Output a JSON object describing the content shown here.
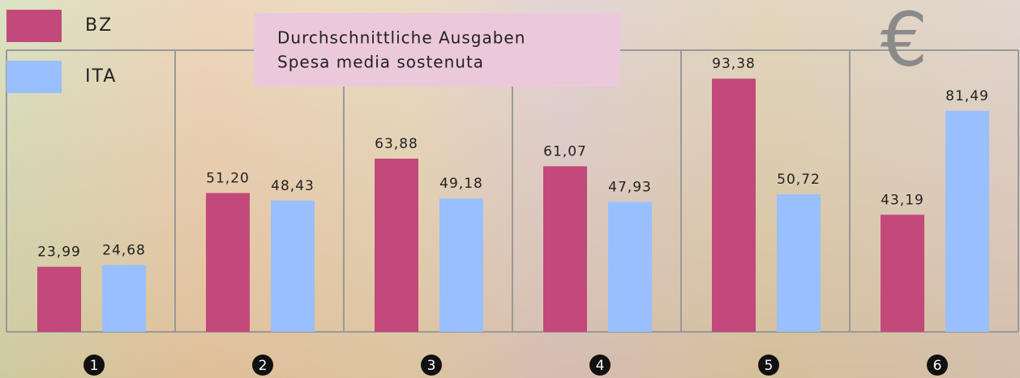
{
  "chart_data": {
    "type": "bar",
    "title": "Durchschnittliche Ausgaben",
    "subtitle": "Spesa media sostenuta",
    "annotations": [
      "€"
    ],
    "categories": [
      "1",
      "2",
      "3",
      "4",
      "5",
      "6"
    ],
    "series": [
      {
        "name": "BZ",
        "color": "#c2497a",
        "values": [
          23.99,
          51.2,
          63.88,
          61.07,
          93.38,
          43.19
        ],
        "value_labels": [
          "23,99",
          "51,20",
          "63,88",
          "61,07",
          "93,38",
          "43,19"
        ]
      },
      {
        "name": "ITA",
        "color": "#99bfff",
        "values": [
          24.68,
          48.43,
          49.18,
          47.93,
          50.72,
          81.49
        ],
        "value_labels": [
          "24,68",
          "48,43",
          "49,18",
          "47,93",
          "50,72",
          "81,49"
        ]
      }
    ]
  }
}
